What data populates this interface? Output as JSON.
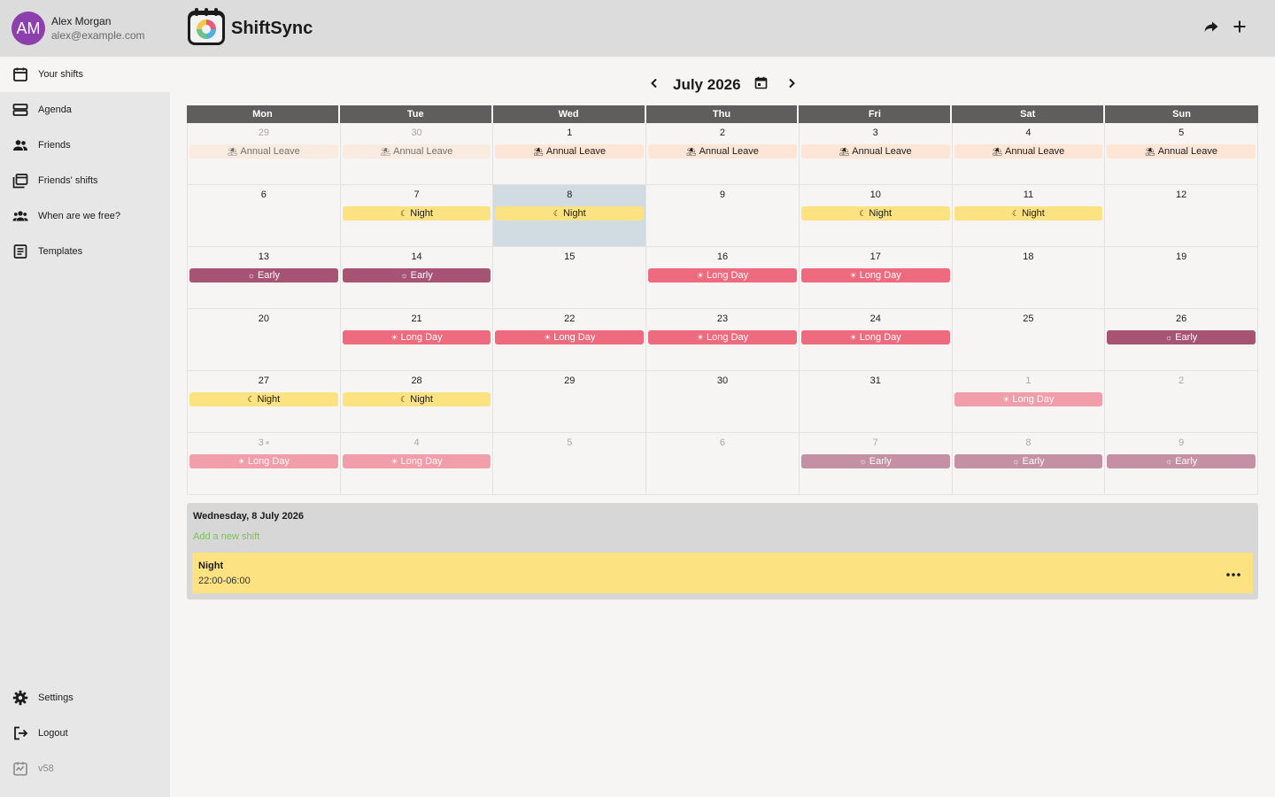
{
  "user": {
    "initials": "AM",
    "name": "Alex Morgan",
    "email": "alex@example.com"
  },
  "app": {
    "title": "ShiftSync"
  },
  "header": {
    "share_icon": "share-icon",
    "add_icon": "add-icon"
  },
  "sidebar": {
    "items": [
      {
        "label": "Your shifts",
        "icon": "calendar-icon"
      },
      {
        "label": "Agenda",
        "icon": "agenda-icon"
      },
      {
        "label": "Friends",
        "icon": "friends-icon"
      },
      {
        "label": "Friends' shifts",
        "icon": "friends-shifts-icon"
      },
      {
        "label": "When are we free?",
        "icon": "group-icon"
      },
      {
        "label": "Templates",
        "icon": "templates-icon"
      }
    ],
    "bottom": [
      {
        "label": "Settings",
        "icon": "gear-icon"
      },
      {
        "label": "Logout",
        "icon": "logout-icon"
      },
      {
        "label": "v58",
        "icon": "version-icon"
      }
    ]
  },
  "calendar": {
    "month_label": "July 2026",
    "weekdays": [
      "Mon",
      "Tue",
      "Wed",
      "Thu",
      "Fri",
      "Sat",
      "Sun"
    ],
    "shift_types": {
      "annual": {
        "label": "Annual Leave",
        "symbol": "⛱",
        "color": "#fde6d5",
        "text": "#1b1b1b"
      },
      "night": {
        "label": "Night",
        "symbol": "☾",
        "color": "#fde282",
        "text": "#1b1b1b"
      },
      "early": {
        "label": "Early",
        "symbol": "☼",
        "color": "#a65374",
        "text": "#ffffff"
      },
      "longday": {
        "label": "Long Day",
        "symbol": "☀",
        "color": "#ee6a7e",
        "text": "#ffffff"
      }
    },
    "days": [
      {
        "num": "29",
        "other": true,
        "shift": "annual"
      },
      {
        "num": "30",
        "other": true,
        "shift": "annual"
      },
      {
        "num": "1",
        "shift": "annual"
      },
      {
        "num": "2",
        "shift": "annual"
      },
      {
        "num": "3",
        "shift": "annual"
      },
      {
        "num": "4",
        "shift": "annual"
      },
      {
        "num": "5",
        "shift": "annual"
      },
      {
        "num": "6"
      },
      {
        "num": "7",
        "shift": "night"
      },
      {
        "num": "8",
        "shift": "night",
        "selected": true
      },
      {
        "num": "9"
      },
      {
        "num": "10",
        "shift": "night"
      },
      {
        "num": "11",
        "shift": "night"
      },
      {
        "num": "12"
      },
      {
        "num": "13",
        "shift": "early"
      },
      {
        "num": "14",
        "shift": "early"
      },
      {
        "num": "15"
      },
      {
        "num": "16",
        "shift": "longday"
      },
      {
        "num": "17",
        "shift": "longday"
      },
      {
        "num": "18"
      },
      {
        "num": "19"
      },
      {
        "num": "20"
      },
      {
        "num": "21",
        "shift": "longday"
      },
      {
        "num": "22",
        "shift": "longday"
      },
      {
        "num": "23",
        "shift": "longday"
      },
      {
        "num": "24",
        "shift": "longday"
      },
      {
        "num": "25"
      },
      {
        "num": "26",
        "shift": "early"
      },
      {
        "num": "27",
        "shift": "night"
      },
      {
        "num": "28",
        "shift": "night"
      },
      {
        "num": "29"
      },
      {
        "num": "30"
      },
      {
        "num": "31"
      },
      {
        "num": "1",
        "other": true,
        "shift": "longday"
      },
      {
        "num": "2",
        "other": true
      },
      {
        "num": "3",
        "other": true,
        "shift": "longday",
        "dot": true
      },
      {
        "num": "4",
        "other": true,
        "shift": "longday"
      },
      {
        "num": "5",
        "other": true
      },
      {
        "num": "6",
        "other": true
      },
      {
        "num": "7",
        "other": true,
        "shift": "early"
      },
      {
        "num": "8",
        "other": true,
        "shift": "early"
      },
      {
        "num": "9",
        "other": true,
        "shift": "early"
      }
    ]
  },
  "details": {
    "date": "Wednesday, 8 July 2026",
    "add_label": "Add a new shift",
    "shift_name": "Night",
    "shift_time": "22:00-06:00",
    "more_icon": "more-icon"
  }
}
